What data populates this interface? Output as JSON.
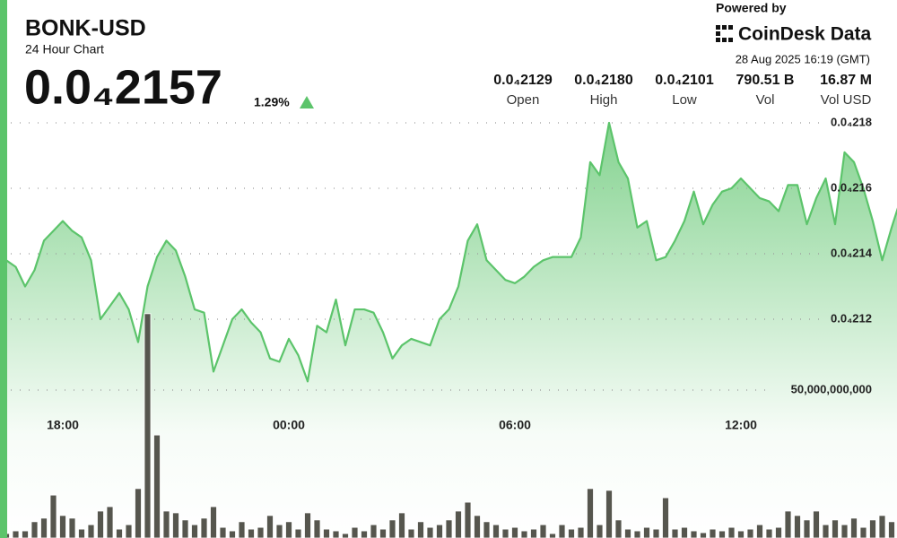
{
  "chart_data": {
    "type": "line",
    "title": "BONK-USD",
    "subtitle": "24 Hour Chart",
    "categories": [
      null,
      null,
      null,
      null,
      null,
      null,
      "18:00",
      null,
      null,
      null,
      null,
      null,
      null,
      null,
      null,
      null,
      null,
      null,
      null,
      null,
      null,
      null,
      null,
      null,
      null,
      null,
      null,
      null,
      null,
      null,
      "00:00",
      null,
      null,
      null,
      null,
      null,
      null,
      null,
      null,
      null,
      null,
      null,
      null,
      null,
      null,
      null,
      null,
      null,
      null,
      null,
      null,
      null,
      null,
      null,
      "06:00",
      null,
      null,
      null,
      null,
      null,
      null,
      null,
      null,
      null,
      null,
      null,
      null,
      null,
      null,
      null,
      null,
      null,
      null,
      null,
      null,
      null,
      null,
      null,
      "12:00",
      null,
      null,
      null,
      null,
      null,
      null,
      null,
      null,
      null,
      null,
      null,
      null,
      null,
      null,
      null,
      null,
      null
    ],
    "series": [
      {
        "type": "line",
        "color": "#5cc46b",
        "values": [
          2.138e-05,
          2.136e-05,
          2.13e-05,
          2.135e-05,
          2.144e-05,
          2.147e-05,
          2.15e-05,
          2.147e-05,
          2.145e-05,
          2.138e-05,
          2.12e-05,
          2.124e-05,
          2.128e-05,
          2.123e-05,
          2.113e-05,
          2.13e-05,
          2.139e-05,
          2.144e-05,
          2.141e-05,
          2.133e-05,
          2.123e-05,
          2.122e-05,
          2.104e-05,
          2.112e-05,
          2.12e-05,
          2.123e-05,
          2.119e-05,
          2.116e-05,
          2.108e-05,
          2.107e-05,
          2.114e-05,
          2.109e-05,
          2.101e-05,
          2.118e-05,
          2.116e-05,
          2.126e-05,
          2.112e-05,
          2.123e-05,
          2.123e-05,
          2.122e-05,
          2.116e-05,
          2.108e-05,
          2.112e-05,
          2.114e-05,
          2.113e-05,
          2.112e-05,
          2.12e-05,
          2.123e-05,
          2.13e-05,
          2.144e-05,
          2.149e-05,
          2.138e-05,
          2.135e-05,
          2.132e-05,
          2.131e-05,
          2.133e-05,
          2.136e-05,
          2.138e-05,
          2.139e-05,
          2.139e-05,
          2.139e-05,
          2.145e-05,
          2.168e-05,
          2.164e-05,
          2.18e-05,
          2.168e-05,
          2.163e-05,
          2.148e-05,
          2.15e-05,
          2.138e-05,
          2.139e-05,
          2.144e-05,
          2.15e-05,
          2.159e-05,
          2.149e-05,
          2.155e-05,
          2.159e-05,
          2.16e-05,
          2.163e-05,
          2.16e-05,
          2.157e-05,
          2.156e-05,
          2.153e-05,
          2.161e-05,
          2.161e-05,
          2.149e-05,
          2.157e-05,
          2.163e-05,
          2.149e-05,
          2.171e-05,
          2.168e-05,
          2.16e-05,
          2.15e-05,
          2.138e-05,
          2.148e-05,
          2.157e-05
        ]
      },
      {
        "type": "bar",
        "axis": "y2",
        "color": "#56564e",
        "values": [
          1500000000.0,
          2400000000.0,
          2400000000.0,
          5500000000.0,
          6700000000.0,
          14500000000.0,
          7600000000.0,
          6700000000.0,
          3000000000.0,
          4500000000.0,
          9100000000.0,
          10600000000.0,
          3000000000.0,
          4500000000.0,
          16700000000.0,
          75800000000.0,
          34800000000.0,
          9100000000.0,
          8500000000.0,
          6100000000.0,
          4500000000.0,
          6700000000.0,
          10600000000.0,
          3600000000.0,
          2400000000.0,
          5500000000.0,
          3000000000.0,
          3600000000.0,
          7600000000.0,
          4500000000.0,
          5500000000.0,
          3000000000.0,
          8500000000.0,
          6100000000.0,
          3000000000.0,
          2400000000.0,
          1500000000.0,
          3600000000.0,
          2400000000.0,
          4500000000.0,
          3000000000.0,
          6100000000.0,
          8500000000.0,
          3000000000.0,
          5500000000.0,
          3600000000.0,
          4500000000.0,
          6100000000.0,
          9100000000.0,
          12100000000.0,
          7600000000.0,
          5500000000.0,
          4500000000.0,
          3000000000.0,
          3600000000.0,
          2400000000.0,
          3000000000.0,
          4500000000.0,
          1500000000.0,
          4500000000.0,
          3000000000.0,
          3600000000.0,
          16700000000.0,
          4500000000.0,
          16100000000.0,
          6100000000.0,
          3000000000.0,
          2400000000.0,
          3600000000.0,
          3000000000.0,
          13600000000.0,
          3000000000.0,
          3600000000.0,
          2400000000.0,
          1800000000.0,
          3000000000.0,
          2400000000.0,
          3600000000.0,
          2400000000.0,
          3000000000.0,
          4500000000.0,
          3000000000.0,
          3600000000.0,
          9100000000.0,
          7600000000.0,
          6100000000.0,
          9100000000.0,
          4500000000.0,
          6100000000.0,
          4500000000.0,
          6700000000.0,
          3600000000.0,
          6100000000.0,
          7600000000.0,
          5500000000.0,
          3000000000.0
        ]
      }
    ],
    "ylim": [
      2.09e-05,
      2.19e-05
    ],
    "yticks": [
      {
        "value": 2.12e-05,
        "label": "0.0₄212"
      },
      {
        "value": 2.14e-05,
        "label": "0.0₄214"
      },
      {
        "value": 2.16e-05,
        "label": "0.0₄216"
      },
      {
        "value": 2.18e-05,
        "label": "0.0₄218"
      }
    ],
    "y2lim": [
      0,
      100000000000
    ],
    "y2ticks": [
      {
        "value": 50000000000,
        "label": "50,000,000,000"
      }
    ],
    "grid": true
  },
  "header": {
    "price": "0.0₄2157",
    "change": "1.29%",
    "powered_by": "Powered by",
    "brand": "CoinDesk Data",
    "timestamp": "28 Aug 2025 16:19 (GMT)",
    "stats": [
      {
        "figure": "0.0₄2129",
        "name": "Open"
      },
      {
        "figure": "0.0₄2180",
        "name": "High"
      },
      {
        "figure": "0.0₄2101",
        "name": "Low"
      },
      {
        "figure": "790.51 B",
        "name": "Vol"
      },
      {
        "figure": "16.87 M",
        "name": "Vol USD"
      }
    ]
  }
}
